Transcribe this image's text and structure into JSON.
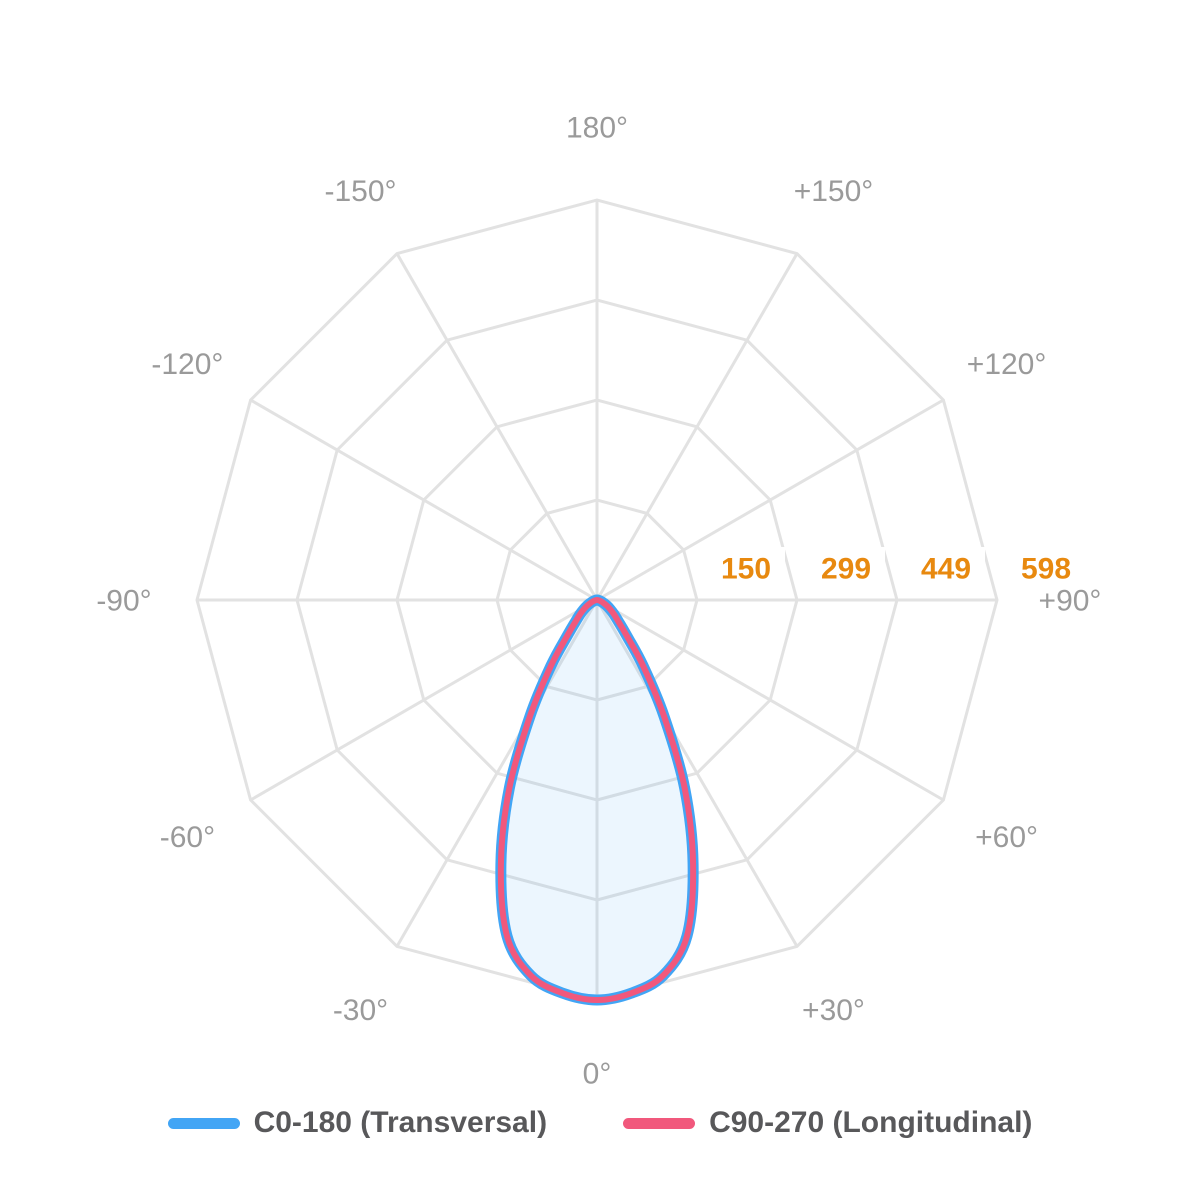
{
  "chart_data": {
    "type": "polar-line",
    "orientation": {
      "zero_position": "bottom",
      "positive_side": "right",
      "angle_step_deg": 30
    },
    "grid": {
      "ring_count": 4,
      "ring_shape": "polygon",
      "color": "#e2e2e2"
    },
    "radial_axis": {
      "max": 598,
      "tick_values": [
        150,
        299,
        449,
        598
      ],
      "tick_color": "#e8890f",
      "tick_backdrop": "#ffffff"
    },
    "angle_labels": [
      {
        "angle": 0,
        "label": "0°"
      },
      {
        "angle": 30,
        "label": "+30°"
      },
      {
        "angle": 60,
        "label": "+60°"
      },
      {
        "angle": 90,
        "label": "+90°"
      },
      {
        "angle": 120,
        "label": "+120°"
      },
      {
        "angle": 150,
        "label": "+150°"
      },
      {
        "angle": 180,
        "label": "180°"
      },
      {
        "angle": -150,
        "label": "-150°"
      },
      {
        "angle": -120,
        "label": "-120°"
      },
      {
        "angle": -90,
        "label": "-90°"
      },
      {
        "angle": -60,
        "label": "-60°"
      },
      {
        "angle": -30,
        "label": "-30°"
      }
    ],
    "angle_label_color": "#9a9a9a",
    "series": [
      {
        "name": "C0-180 (Transversal)",
        "color": "#42a5f5",
        "line_width": 11,
        "fill": "rgba(66,165,245,0.10)",
        "angles_deg": [
          -90,
          -85,
          -80,
          -75,
          -70,
          -65,
          -60,
          -55,
          -50,
          -45,
          -40,
          -35,
          -30,
          -25,
          -20,
          -15,
          -10,
          -5,
          0,
          5,
          10,
          15,
          20,
          25,
          30,
          35,
          40,
          45,
          50,
          55,
          60,
          65,
          70,
          75,
          80,
          85,
          90
        ],
        "values": [
          0,
          1,
          2,
          4,
          7,
          11,
          17,
          24,
          33,
          45,
          68,
          120,
          200,
          310,
          420,
          520,
          570,
          590,
          598,
          590,
          570,
          520,
          420,
          310,
          200,
          120,
          68,
          45,
          33,
          24,
          17,
          11,
          7,
          4,
          2,
          1,
          0
        ]
      },
      {
        "name": "C90-270 (Longitudinal)",
        "color": "#f1587c",
        "line_width": 6,
        "fill": "none",
        "angles_deg": [
          -90,
          -85,
          -80,
          -75,
          -70,
          -65,
          -60,
          -55,
          -50,
          -45,
          -40,
          -35,
          -30,
          -25,
          -20,
          -15,
          -10,
          -5,
          0,
          5,
          10,
          15,
          20,
          25,
          30,
          35,
          40,
          45,
          50,
          55,
          60,
          65,
          70,
          75,
          80,
          85,
          90
        ],
        "values": [
          0,
          1,
          2,
          4,
          7,
          11,
          17,
          24,
          33,
          45,
          68,
          120,
          200,
          310,
          420,
          520,
          570,
          590,
          598,
          590,
          570,
          520,
          420,
          310,
          200,
          120,
          68,
          45,
          33,
          24,
          17,
          11,
          7,
          4,
          2,
          1,
          0
        ]
      }
    ]
  },
  "legend": {
    "items": [
      {
        "label": "C0-180 (Transversal)",
        "color": "#42a5f5"
      },
      {
        "label": "C90-270 (Longitudinal)",
        "color": "#f1587c"
      }
    ]
  }
}
